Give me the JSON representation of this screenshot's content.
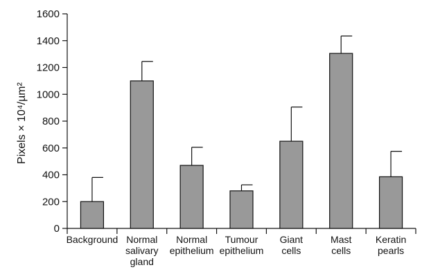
{
  "chart_data": {
    "type": "bar",
    "categories": [
      [
        "Background"
      ],
      [
        "Normal",
        "salivary",
        "gland"
      ],
      [
        "Normal",
        "epithelium"
      ],
      [
        "Tumour",
        "epithelium"
      ],
      [
        "Giant",
        "cells"
      ],
      [
        "Mast",
        "cells"
      ],
      [
        "Keratin",
        "pearls"
      ]
    ],
    "values": [
      200,
      1100,
      470,
      280,
      650,
      1305,
      385
    ],
    "error_upper": [
      380,
      1245,
      605,
      325,
      905,
      1435,
      575
    ],
    "ylabel": "Pixels × 10⁴/µm²",
    "ylim": [
      0,
      1600
    ],
    "yticks": [
      0,
      200,
      400,
      600,
      800,
      1000,
      1200,
      1400,
      1600
    ],
    "grid": false,
    "colors": {
      "bar": "#999999",
      "stroke": "#111111"
    }
  }
}
